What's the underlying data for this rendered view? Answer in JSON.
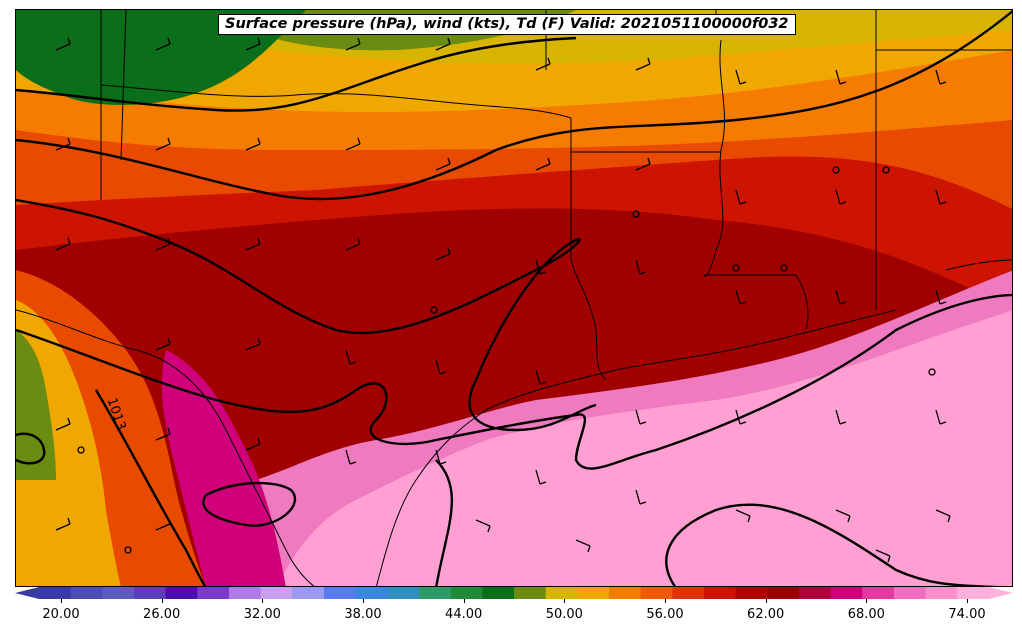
{
  "title": "Surface pressure (hPa), wind (kts), Td (F) Valid: 2021051100000f032",
  "contour_label": "1013",
  "colorbar": {
    "ticks": [
      "20.00",
      "26.00",
      "32.00",
      "38.00",
      "44.00",
      "50.00",
      "56.00",
      "62.00",
      "68.00",
      "74.00"
    ],
    "colors": [
      "#3a3aa6",
      "#4d4db5",
      "#5c5cbf",
      "#5a3fb8",
      "#4b0fb0",
      "#7a3ad0",
      "#b07ae6",
      "#c8a0f0",
      "#9a9af0",
      "#5a7af5",
      "#3a86e0",
      "#2f8fbf",
      "#2e9a6a",
      "#1e8a3a",
      "#0b6e1a",
      "#6a8c12",
      "#d6b400",
      "#f0a800",
      "#f57c00",
      "#ef5a00",
      "#e03400",
      "#cc1400",
      "#b00000",
      "#9a0000",
      "#b0003a",
      "#d0007a",
      "#e23aa0",
      "#f56cc0",
      "#ff8fcc",
      "#ffb0dd"
    ]
  },
  "map_colors": {
    "td_74": "#ff9fd2",
    "td_70": "#f07ac0",
    "td_66": "#d0007a",
    "td_62": "#a00000",
    "td_60": "#cc1400",
    "td_56": "#e84a00",
    "td_54": "#f57c00",
    "td_50": "#f0a800",
    "td_48": "#d6b400",
    "td_44": "#6a8c12",
    "td_40": "#0b6e1a"
  }
}
